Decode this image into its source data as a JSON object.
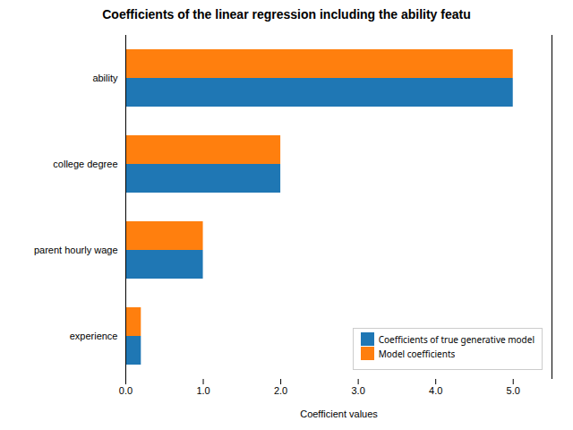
{
  "chart_data": {
    "type": "bar",
    "orientation": "horizontal",
    "title": "Coefficients of the linear regression including the ability featu",
    "xlabel": "Coefficient values",
    "categories": [
      "experience",
      "parent hourly wage",
      "college degree",
      "ability"
    ],
    "series": [
      {
        "name": "Coefficients of true generative model",
        "color": "#1f77b4",
        "values": [
          0.2,
          1.0,
          2.0,
          5.0
        ]
      },
      {
        "name": "Model coefficients",
        "color": "#ff7f0e",
        "values": [
          0.2,
          1.0,
          2.0,
          5.0
        ]
      }
    ],
    "xlim": [
      0,
      5.5
    ],
    "xticks": [
      0,
      1,
      2,
      3,
      4,
      5
    ],
    "legend": "lower right"
  }
}
